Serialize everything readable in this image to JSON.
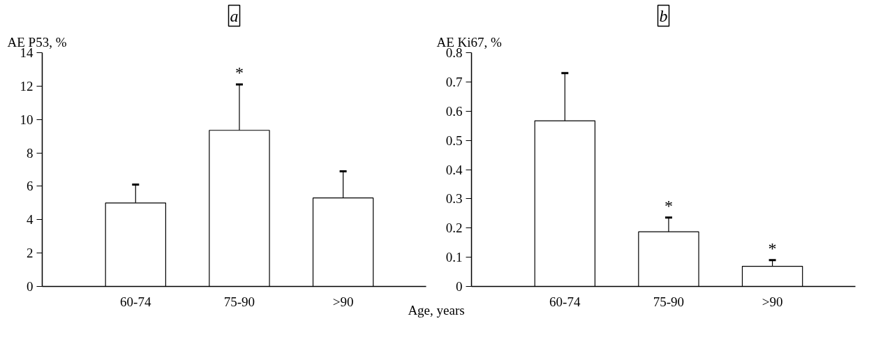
{
  "chart_data": [
    {
      "type": "bar",
      "title": "a",
      "ylabel": "AE P53, %",
      "xlabel": "Age, years",
      "categories": [
        "60-74",
        "75-90",
        ">90"
      ],
      "values": [
        5.0,
        9.35,
        5.3
      ],
      "color": "#ffffff",
      "errors": [
        [
          5.0,
          6.1
        ],
        [
          9.35,
          12.1
        ],
        [
          5.3,
          6.9
        ]
      ],
      "ylim": [
        0,
        14
      ],
      "yticks": [
        0,
        2,
        4,
        6,
        8,
        10,
        12,
        14
      ],
      "grid": false,
      "annotations": [
        {
          "text": "*",
          "x": "75-90",
          "y": 12.1
        }
      ]
    },
    {
      "type": "bar",
      "title": "b",
      "ylabel": "AE Ki67, %",
      "categories": [
        "60-74",
        "75-90",
        ">90"
      ],
      "values": [
        0.567,
        0.187,
        0.069
      ],
      "color": "#ffffff",
      "errors": [
        [
          0.567,
          0.73
        ],
        [
          0.187,
          0.236
        ],
        [
          0.069,
          0.09
        ]
      ],
      "ylim": [
        0,
        0.8
      ],
      "yticks": [
        0,
        0.1,
        0.2,
        0.3,
        0.4,
        0.5,
        0.6,
        0.7,
        0.8
      ],
      "grid": false,
      "annotations": [
        {
          "text": "*",
          "x": "75-90",
          "y": 0.236
        },
        {
          "text": "*",
          "x": ">90",
          "y": 0.09
        }
      ]
    }
  ]
}
